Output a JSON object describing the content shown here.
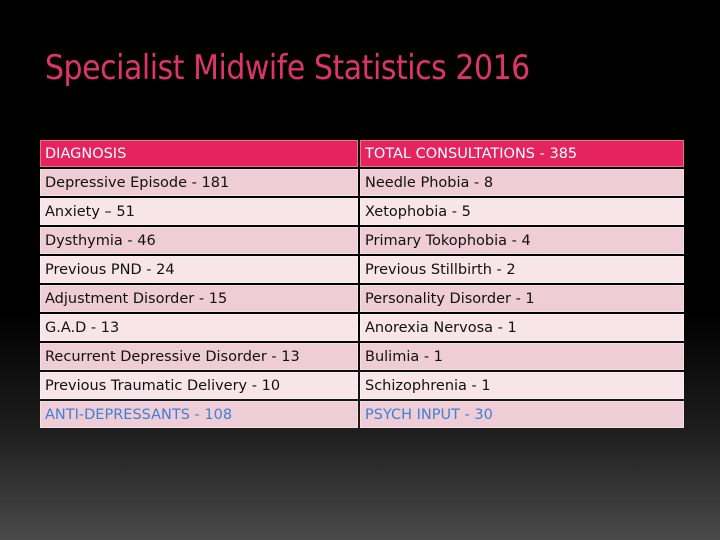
{
  "title": "Specialist Midwife Statistics 2016",
  "table": {
    "headers": [
      "DIAGNOSIS",
      "TOTAL CONSULTATIONS - 385"
    ],
    "rows": [
      [
        "Depressive Episode - 181",
        "Needle Phobia - 8"
      ],
      [
        "Anxiety – 51",
        "Xetophobia - 5"
      ],
      [
        "Dysthymia - 46",
        "Primary Tokophobia - 4"
      ],
      [
        "Previous PND - 24",
        "Previous Stillbirth - 2"
      ],
      [
        "Adjustment Disorder - 15",
        "Personality Disorder - 1"
      ],
      [
        "G.A.D - 13",
        "Anorexia Nervosa - 1"
      ],
      [
        "Recurrent Depressive Disorder - 13",
        "Bulimia - 1"
      ],
      [
        "Previous Traumatic Delivery - 10",
        "Schizophrenia - 1"
      ],
      [
        "ANTI-DEPRESSANTS - 108",
        "PSYCH INPUT - 30"
      ]
    ]
  },
  "colors": {
    "title": "#e0336e",
    "header_bg": "#e4235f",
    "row_dark": "#efcdd6",
    "row_light": "#f8e5e9",
    "total_text": "#3f7fd4"
  }
}
